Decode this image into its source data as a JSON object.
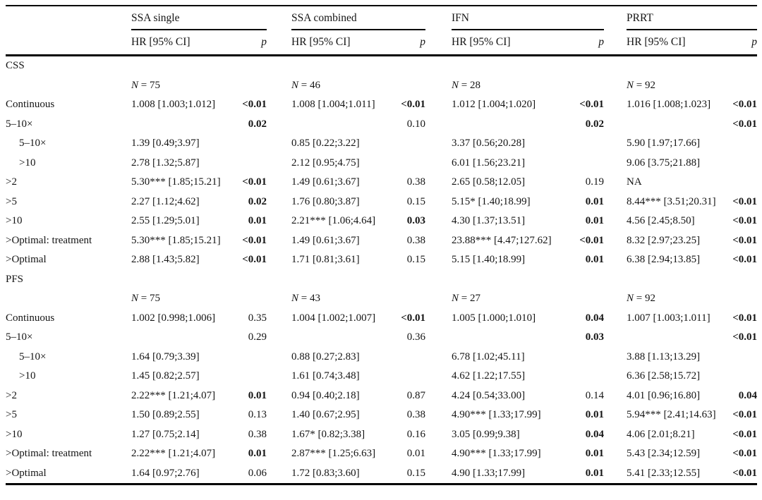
{
  "table": {
    "groups": [
      "SSA single",
      "SSA combined",
      "IFN",
      "PRRT"
    ],
    "subheader_hr": "HR [95% CI]",
    "subheader_p": "p",
    "sections": [
      {
        "title": "CSS",
        "rows": [
          {
            "label": "",
            "cells": [
              {
                "n": "75"
              },
              {
                "n": "46"
              },
              {
                "n": "28"
              },
              {
                "n": "92"
              }
            ]
          },
          {
            "label": "Continuous",
            "cells": [
              {
                "hr": "1.008 [1.003;1.012]",
                "p": "<0.01",
                "pb": true
              },
              {
                "hr": "1.008 [1.004;1.011]",
                "p": "<0.01",
                "pb": true
              },
              {
                "hr": "1.012 [1.004;1.020]",
                "p": "<0.01",
                "pb": true
              },
              {
                "hr": "1.016 [1.008;1.023]",
                "p": "<0.01",
                "pb": true
              }
            ]
          },
          {
            "label": "5–10×",
            "cells": [
              {
                "p": "0.02",
                "pb": true
              },
              {
                "p": "0.10"
              },
              {
                "p": "0.02",
                "pb": true
              },
              {
                "p": "<0.01",
                "pb": true
              }
            ]
          },
          {
            "label": "5–10×",
            "indent": true,
            "cells": [
              {
                "hr": "1.39 [0.49;3.97]"
              },
              {
                "hr": "0.85 [0.22;3.22]"
              },
              {
                "hr": "3.37 [0.56;20.28]"
              },
              {
                "hr": "5.90 [1.97;17.66]"
              }
            ]
          },
          {
            "label": ">10",
            "indent": true,
            "cells": [
              {
                "hr": "2.78 [1.32;5.87]"
              },
              {
                "hr": "2.12 [0.95;4.75]"
              },
              {
                "hr": "6.01 [1.56;23.21]"
              },
              {
                "hr": "9.06 [3.75;21.88]"
              }
            ]
          },
          {
            "label": ">2",
            "cells": [
              {
                "hr": "5.30*** [1.85;15.21]",
                "p": "<0.01",
                "pb": true
              },
              {
                "hr": "1.49 [0.61;3.67]",
                "p": "0.38"
              },
              {
                "hr": "2.65 [0.58;12.05]",
                "p": "0.19"
              },
              {
                "hr": "NA"
              }
            ]
          },
          {
            "label": ">5",
            "cells": [
              {
                "hr": "2.27 [1.12;4.62]",
                "p": "0.02",
                "pb": true
              },
              {
                "hr": "1.76 [0.80;3.87]",
                "p": "0.15"
              },
              {
                "hr": "5.15* [1.40;18.99]",
                "p": "0.01",
                "pb": true
              },
              {
                "hr": "8.44*** [3.51;20.31]",
                "p": "<0.01",
                "pb": true
              }
            ]
          },
          {
            "label": ">10",
            "cells": [
              {
                "hr": "2.55 [1.29;5.01]",
                "p": "0.01",
                "pb": true
              },
              {
                "hr": "2.21*** [1.06;4.64]",
                "p": "0.03",
                "pb": true
              },
              {
                "hr": "4.30 [1.37;13.51]",
                "p": "0.01",
                "pb": true
              },
              {
                "hr": "4.56 [2.45;8.50]",
                "p": "<0.01",
                "pb": true
              }
            ]
          },
          {
            "label": ">Optimal: treatment",
            "cells": [
              {
                "hr": "5.30*** [1.85;15.21]",
                "p": "<0.01",
                "pb": true
              },
              {
                "hr": "1.49 [0.61;3.67]",
                "p": "0.38"
              },
              {
                "hr": "23.88*** [4.47;127.62]",
                "p": "<0.01",
                "pb": true
              },
              {
                "hr": "8.32 [2.97;23.25]",
                "p": "<0.01",
                "pb": true
              }
            ]
          },
          {
            "label": ">Optimal",
            "cells": [
              {
                "hr": "2.88 [1.43;5.82]",
                "p": "<0.01",
                "pb": true
              },
              {
                "hr": "1.71 [0.81;3.61]",
                "p": "0.15"
              },
              {
                "hr": "5.15 [1.40;18.99]",
                "p": "0.01",
                "pb": true
              },
              {
                "hr": "6.38 [2.94;13.85]",
                "p": "<0.01",
                "pb": true
              }
            ]
          }
        ]
      },
      {
        "title": "PFS",
        "rows": [
          {
            "label": "",
            "cells": [
              {
                "n": "75"
              },
              {
                "n": "43"
              },
              {
                "n": "27"
              },
              {
                "n": "92"
              }
            ]
          },
          {
            "label": "Continuous",
            "cells": [
              {
                "hr": "1.002 [0.998;1.006]",
                "p": "0.35"
              },
              {
                "hr": "1.004 [1.002;1.007]",
                "p": "<0.01",
                "pb": true
              },
              {
                "hr": "1.005 [1.000;1.010]",
                "p": "0.04",
                "pb": true
              },
              {
                "hr": "1.007 [1.003;1.011]",
                "p": "<0.01",
                "pb": true
              }
            ]
          },
          {
            "label": "5–10×",
            "cells": [
              {
                "p": "0.29"
              },
              {
                "p": "0.36"
              },
              {
                "p": "0.03",
                "pb": true
              },
              {
                "p": "<0.01",
                "pb": true
              }
            ]
          },
          {
            "label": "5–10×",
            "indent": true,
            "cells": [
              {
                "hr": "1.64 [0.79;3.39]"
              },
              {
                "hr": "0.88 [0.27;2.83]"
              },
              {
                "hr": "6.78 [1.02;45.11]"
              },
              {
                "hr": "3.88 [1.13;13.29]"
              }
            ]
          },
          {
            "label": ">10",
            "indent": true,
            "cells": [
              {
                "hr": "1.45 [0.82;2.57]"
              },
              {
                "hr": "1.61 [0.74;3.48]"
              },
              {
                "hr": "4.62 [1.22;17.55]"
              },
              {
                "hr": "6.36 [2.58;15.72]"
              }
            ]
          },
          {
            "label": ">2",
            "cells": [
              {
                "hr": "2.22*** [1.21;4.07]",
                "p": "0.01",
                "pb": true
              },
              {
                "hr": "0.94 [0.40;2.18]",
                "p": "0.87"
              },
              {
                "hr": "4.24 [0.54;33.00]",
                "p": "0.14"
              },
              {
                "hr": "4.01 [0.96;16.80]",
                "p": "0.04",
                "pb": true
              }
            ]
          },
          {
            "label": ">5",
            "cells": [
              {
                "hr": "1.50 [0.89;2.55]",
                "p": "0.13"
              },
              {
                "hr": "1.40 [0.67;2.95]",
                "p": "0.38"
              },
              {
                "hr": "4.90*** [1.33;17.99]",
                "p": "0.01",
                "pb": true
              },
              {
                "hr": "5.94*** [2.41;14.63]",
                "p": "<0.01",
                "pb": true
              }
            ]
          },
          {
            "label": ">10",
            "cells": [
              {
                "hr": "1.27 [0.75;2.14]",
                "p": "0.38"
              },
              {
                "hr": "1.67* [0.82;3.38]",
                "p": "0.16"
              },
              {
                "hr": "3.05 [0.99;9.38]",
                "p": "0.04",
                "pb": true
              },
              {
                "hr": "4.06 [2.01;8.21]",
                "p": "<0.01",
                "pb": true
              }
            ]
          },
          {
            "label": ">Optimal: treatment",
            "cells": [
              {
                "hr": "2.22*** [1.21;4.07]",
                "p": "0.01",
                "pb": true
              },
              {
                "hr": "2.87*** [1.25;6.63]",
                "p": "0.01"
              },
              {
                "hr": "4.90*** [1.33;17.99]",
                "p": "0.01",
                "pb": true
              },
              {
                "hr": "5.43 [2.34;12.59]",
                "p": "<0.01",
                "pb": true
              }
            ]
          },
          {
            "label": ">Optimal",
            "cells": [
              {
                "hr": "1.64 [0.97;2.76]",
                "p": "0.06"
              },
              {
                "hr": "1.72 [0.83;3.60]",
                "p": "0.15"
              },
              {
                "hr": "4.90 [1.33;17.99]",
                "p": "0.01",
                "pb": true
              },
              {
                "hr": "5.41 [2.33;12.55]",
                "p": "<0.01",
                "pb": true
              }
            ]
          }
        ]
      }
    ]
  }
}
